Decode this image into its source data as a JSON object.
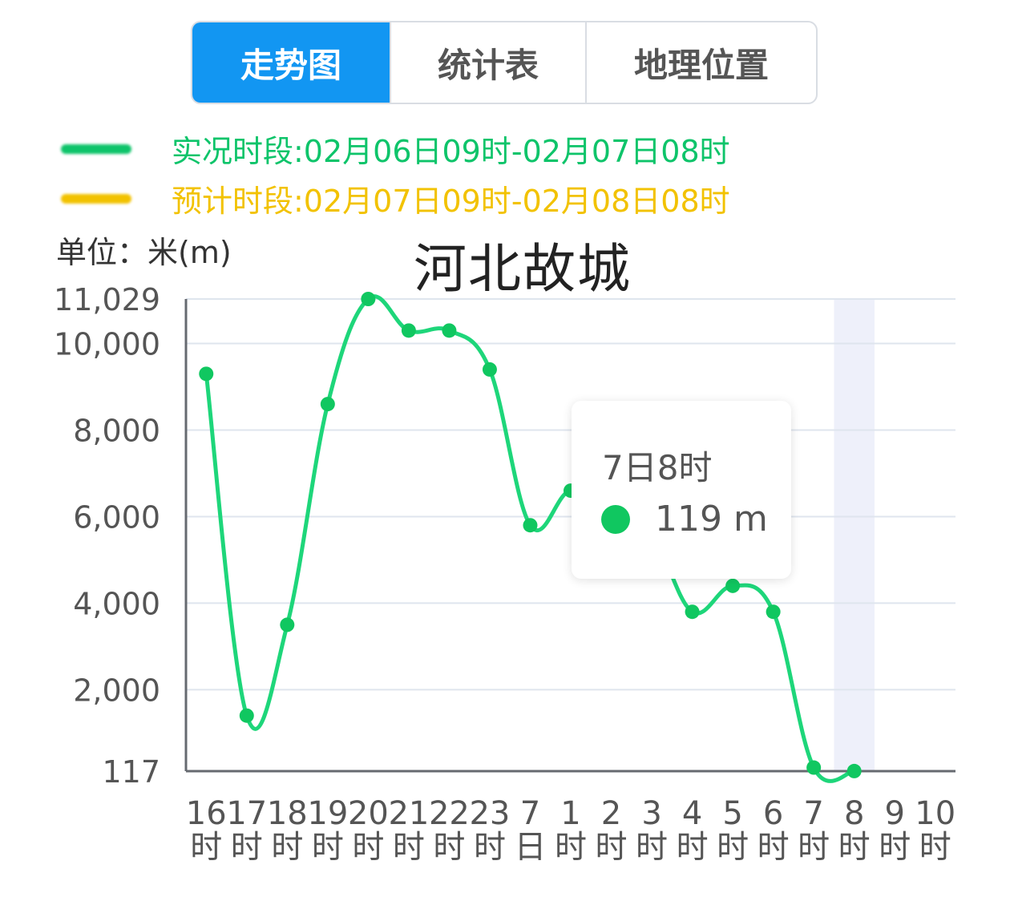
{
  "tabs": [
    {
      "label": "走势图",
      "active": true
    },
    {
      "label": "统计表",
      "active": false
    },
    {
      "label": "地理位置",
      "active": false
    }
  ],
  "legend": [
    {
      "text": "实况时段:02月06日09时-02月07日08时",
      "color": "#0ec46a"
    },
    {
      "text": "预计时段:02月07日09时-02月08日08时",
      "color": "#f2c200"
    }
  ],
  "unit_label": "单位：米(m)",
  "colors": {
    "line": "#1ed67a",
    "point": "#10c760",
    "grid": "#dfe5ee",
    "axis": "#666a70",
    "highlight": "#eef0fa"
  },
  "tooltip": {
    "title": "7日8时",
    "value": "119 m"
  },
  "chart_data": {
    "type": "line",
    "title": "河北故城",
    "ylim": [
      117,
      11029
    ],
    "y_ticks": [
      {
        "value": 11029,
        "label": "11,029"
      },
      {
        "value": 10000,
        "label": "10,000"
      },
      {
        "value": 8000,
        "label": "8,000"
      },
      {
        "value": 6000,
        "label": "6,000"
      },
      {
        "value": 4000,
        "label": "4,000"
      },
      {
        "value": 2000,
        "label": "2,000"
      },
      {
        "value": 117,
        "label": "117"
      }
    ],
    "categories": [
      [
        "16",
        "时"
      ],
      [
        "17",
        "时"
      ],
      [
        "18",
        "时"
      ],
      [
        "19",
        "时"
      ],
      [
        "20",
        "时"
      ],
      [
        "21",
        "时"
      ],
      [
        "22",
        "时"
      ],
      [
        "23",
        "时"
      ],
      [
        "7",
        "日"
      ],
      [
        "1",
        "时"
      ],
      [
        "2",
        "时"
      ],
      [
        "3",
        "时"
      ],
      [
        "4",
        "时"
      ],
      [
        "5",
        "时"
      ],
      [
        "6",
        "时"
      ],
      [
        "7",
        "时"
      ],
      [
        "8",
        "时"
      ],
      [
        "9",
        "时"
      ],
      [
        "10",
        "时"
      ]
    ],
    "values": [
      9300,
      1400,
      3500,
      8600,
      11029,
      10300,
      10300,
      9400,
      5800,
      6600,
      6000,
      5600,
      3800,
      4400,
      3800,
      200,
      119,
      null,
      null
    ],
    "highlight_index": 16,
    "grid": true
  }
}
